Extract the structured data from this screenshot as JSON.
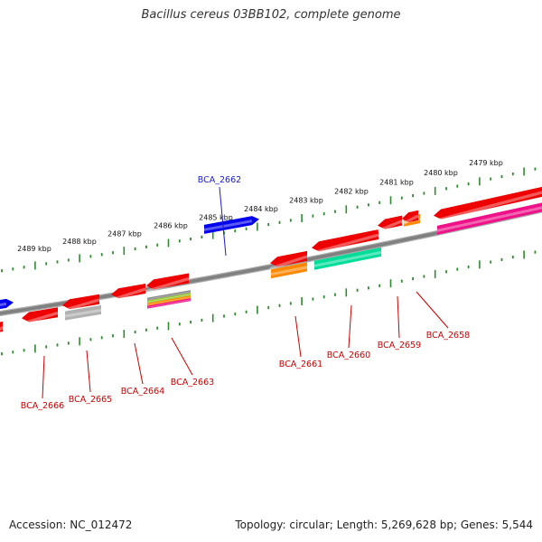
{
  "title": "Bacillus cereus 03BB102, complete genome",
  "footer": {
    "accession": "Accession: NC_012472",
    "summary": "Topology: circular; Length: 5,269,628 bp; Genes: 5,544"
  },
  "colors": {
    "backbone": "#808080",
    "tick": "#2e8b2e",
    "forward_label": "#1a1acc",
    "reverse_label": "#cc0000"
  },
  "kbp_labels": [
    "2489 kbp",
    "2488 kbp",
    "2487 kbp",
    "2486 kbp",
    "2485 kbp",
    "2484 kbp",
    "2483 kbp",
    "2482 kbp",
    "2481 kbp",
    "2480 kbp",
    "2479 kbp"
  ],
  "genes": [
    {
      "label": "BCA_2662",
      "strand": "forward",
      "color": "#0000ee"
    },
    {
      "label": "BCA_2666",
      "strand": "reverse",
      "color": "#ee0000"
    },
    {
      "label": "BCA_2665",
      "strand": "reverse",
      "color": "#ee0000"
    },
    {
      "label": "BCA_2664",
      "strand": "reverse",
      "color": "#ee0000"
    },
    {
      "label": "BCA_2663",
      "strand": "reverse",
      "color": "#ee0000"
    },
    {
      "label": "BCA_2661",
      "strand": "reverse",
      "color": "#ee0000"
    },
    {
      "label": "BCA_2660",
      "strand": "reverse",
      "color": "#ee0000"
    },
    {
      "label": "BCA_2659",
      "strand": "reverse",
      "color": "#ee0000"
    },
    {
      "label": "BCA_2658",
      "strand": "reverse",
      "color": "#ee0000"
    }
  ]
}
